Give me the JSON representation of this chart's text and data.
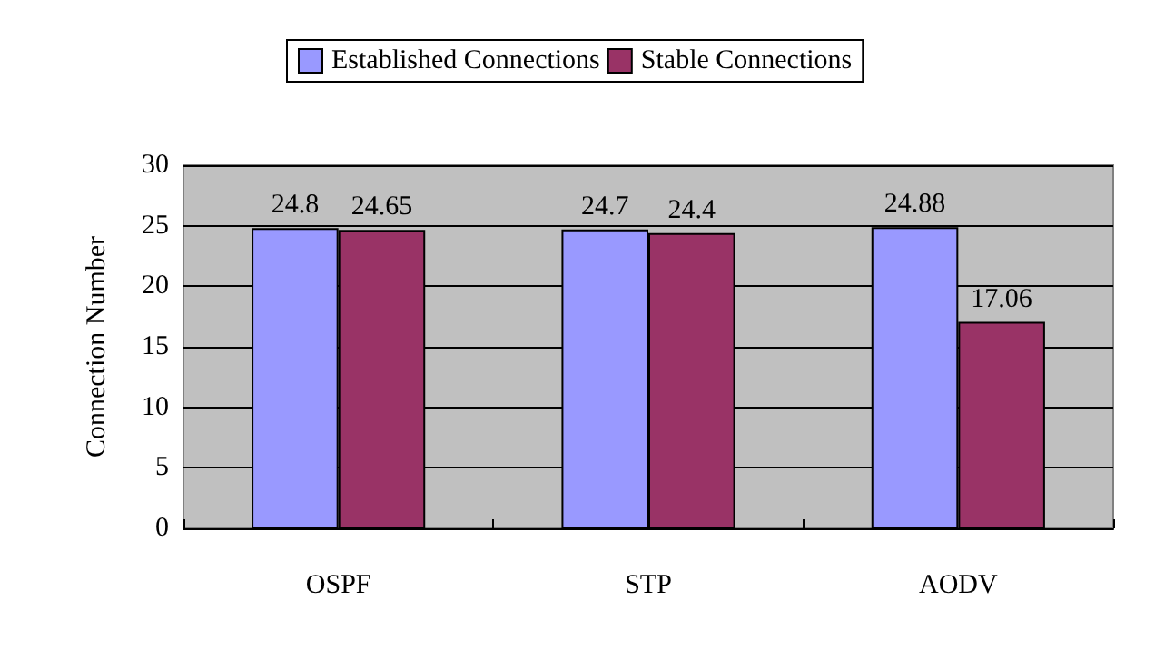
{
  "chart_data": {
    "type": "bar",
    "ylabel": "Connection Number",
    "categories": [
      "OSPF",
      "STP",
      "AODV"
    ],
    "series": [
      {
        "name": "Established Connections",
        "color": "#9999ff",
        "values": [
          24.8,
          24.7,
          24.88
        ]
      },
      {
        "name": "Stable Connections",
        "color": "#993366",
        "values": [
          24.65,
          24.4,
          17.06
        ]
      }
    ],
    "ylim": [
      0,
      30
    ],
    "yticks": [
      0,
      5,
      10,
      15,
      20,
      25,
      30
    ],
    "grid": "y",
    "legend": "top",
    "data_labels": true
  }
}
